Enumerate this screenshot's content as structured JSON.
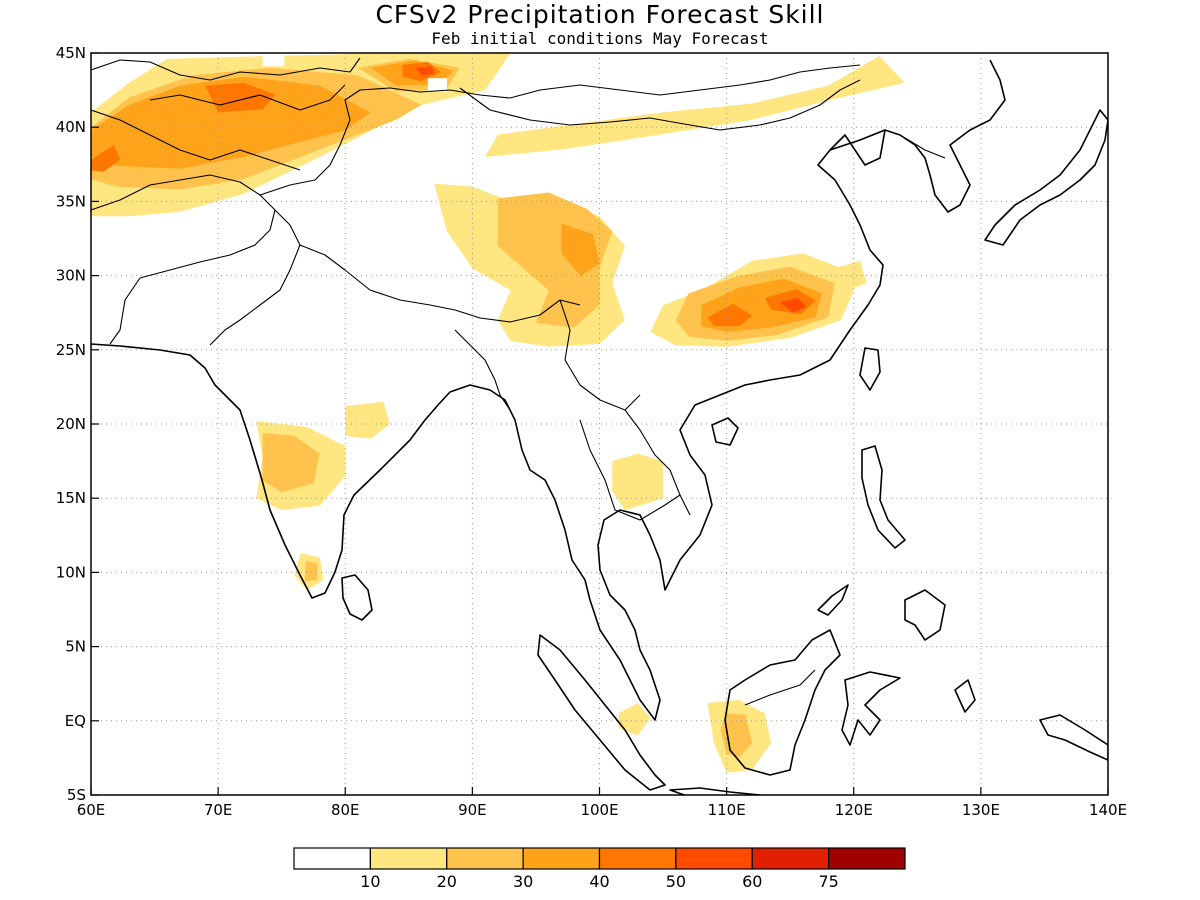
{
  "title": "CFSv2 Precipitation Forecast Skill",
  "subtitle": "Feb initial conditions  May Forecast",
  "map": {
    "lon_range": [
      60,
      140
    ],
    "lat_range": [
      -5,
      45
    ],
    "lon_ticks": [
      {
        "value": 60,
        "label": "60E"
      },
      {
        "value": 70,
        "label": "70E"
      },
      {
        "value": 80,
        "label": "80E"
      },
      {
        "value": 90,
        "label": "90E"
      },
      {
        "value": 100,
        "label": "100E"
      },
      {
        "value": 110,
        "label": "110E"
      },
      {
        "value": 120,
        "label": "120E"
      },
      {
        "value": 130,
        "label": "130E"
      },
      {
        "value": 140,
        "label": "140E"
      }
    ],
    "lat_ticks": [
      {
        "value": 45,
        "label": "45N"
      },
      {
        "value": 40,
        "label": "40N"
      },
      {
        "value": 35,
        "label": "35N"
      },
      {
        "value": 30,
        "label": "30N"
      },
      {
        "value": 25,
        "label": "25N"
      },
      {
        "value": 20,
        "label": "20N"
      },
      {
        "value": 15,
        "label": "15N"
      },
      {
        "value": 10,
        "label": "10N"
      },
      {
        "value": 5,
        "label": "5N"
      },
      {
        "value": 0,
        "label": "EQ"
      },
      {
        "value": -5,
        "label": "5S"
      }
    ],
    "grid": "dotted"
  },
  "colorbar": {
    "labels": [
      "10",
      "20",
      "30",
      "40",
      "50",
      "60",
      "75"
    ],
    "colors": [
      "#ffffff",
      "#ffe680",
      "#ffc34d",
      "#ffa31a",
      "#ff7700",
      "#ff4a00",
      "#e02000",
      "#a00000"
    ]
  },
  "skill_regions": [
    {
      "level": 1,
      "points": [
        [
          66,
          44.6
        ],
        [
          74,
          44.8
        ],
        [
          84,
          45
        ],
        [
          93,
          45
        ],
        [
          91,
          42.5
        ],
        [
          86,
          41.5
        ],
        [
          78,
          38
        ],
        [
          72,
          35.5
        ],
        [
          67,
          34.3
        ],
        [
          63,
          34
        ],
        [
          60,
          34
        ],
        [
          60,
          41
        ],
        [
          63,
          43
        ]
      ]
    },
    {
      "level": 1,
      "points": [
        [
          91,
          38
        ],
        [
          97,
          38.5
        ],
        [
          104,
          39.4
        ],
        [
          112,
          40.5
        ],
        [
          118,
          41.8
        ],
        [
          124,
          43
        ],
        [
          122,
          44.8
        ],
        [
          118,
          42.8
        ],
        [
          112,
          41.6
        ],
        [
          105,
          41
        ],
        [
          98,
          40.2
        ],
        [
          92,
          39.5
        ]
      ]
    },
    {
      "level": 1,
      "points": [
        [
          87,
          36.2
        ],
        [
          90,
          36
        ],
        [
          93,
          35
        ],
        [
          97,
          35
        ],
        [
          100,
          34
        ],
        [
          102,
          32
        ],
        [
          101,
          29.5
        ],
        [
          102,
          27
        ],
        [
          100,
          25.4
        ],
        [
          96,
          25.2
        ],
        [
          93,
          25.6
        ],
        [
          92,
          27
        ],
        [
          93,
          29
        ],
        [
          90,
          30.5
        ],
        [
          88,
          33
        ]
      ]
    },
    {
      "level": 1,
      "points": [
        [
          108,
          29
        ],
        [
          112,
          31
        ],
        [
          116,
          31.5
        ],
        [
          119,
          30.5
        ],
        [
          120,
          29
        ],
        [
          119,
          27
        ],
        [
          115,
          25.8
        ],
        [
          110,
          25.2
        ],
        [
          106,
          25.3
        ],
        [
          104,
          26.2
        ],
        [
          105,
          28
        ]
      ]
    },
    {
      "level": 1,
      "points": [
        [
          73,
          20.2
        ],
        [
          77,
          19.8
        ],
        [
          80,
          18.5
        ],
        [
          80,
          16.5
        ],
        [
          78,
          14.5
        ],
        [
          75,
          14.2
        ],
        [
          73,
          15
        ],
        [
          73.5,
          17.8
        ]
      ]
    },
    {
      "level": 1,
      "points": [
        [
          80,
          21.2
        ],
        [
          83,
          21.5
        ],
        [
          83.5,
          20
        ],
        [
          82,
          19
        ],
        [
          80,
          19.2
        ]
      ]
    },
    {
      "level": 1,
      "points": [
        [
          101,
          17.5
        ],
        [
          103,
          18
        ],
        [
          105,
          17.5
        ],
        [
          105,
          15
        ],
        [
          102,
          14.2
        ],
        [
          101,
          15.5
        ]
      ]
    },
    {
      "level": 1,
      "points": [
        [
          108.5,
          1.2
        ],
        [
          111,
          1.4
        ],
        [
          113,
          0.5
        ],
        [
          113.5,
          -1.5
        ],
        [
          112,
          -3.3
        ],
        [
          110,
          -3.5
        ],
        [
          109,
          -1.5
        ]
      ]
    },
    {
      "level": 1,
      "points": [
        [
          101.5,
          0.5
        ],
        [
          103,
          1.2
        ],
        [
          104,
          0.2
        ],
        [
          103,
          -1
        ],
        [
          101.5,
          -0.5
        ]
      ]
    },
    {
      "level": 1,
      "points": [
        [
          76.5,
          11.3
        ],
        [
          78,
          11
        ],
        [
          78.3,
          9.5
        ],
        [
          77,
          8.8
        ],
        [
          76,
          9.8
        ]
      ]
    },
    {
      "level": 1,
      "points": [
        [
          118.5,
          30.5
        ],
        [
          120.5,
          31
        ],
        [
          121,
          29.5
        ],
        [
          119.5,
          29
        ]
      ]
    },
    {
      "level": 2,
      "points": [
        [
          68,
          43.5
        ],
        [
          74,
          44
        ],
        [
          81,
          43.5
        ],
        [
          86,
          41.5
        ],
        [
          84,
          40.5
        ],
        [
          78,
          38.5
        ],
        [
          72,
          36.5
        ],
        [
          67,
          35.8
        ],
        [
          62,
          36
        ],
        [
          60,
          36.5
        ],
        [
          60,
          40
        ],
        [
          63,
          42
        ]
      ]
    },
    {
      "level": 2,
      "points": [
        [
          81,
          44
        ],
        [
          85,
          44.6
        ],
        [
          89,
          44
        ],
        [
          88,
          42.6
        ],
        [
          84,
          42.4
        ]
      ]
    },
    {
      "level": 2,
      "points": [
        [
          92,
          35.2
        ],
        [
          96,
          35.6
        ],
        [
          99,
          34.5
        ],
        [
          101,
          33
        ],
        [
          100,
          30.5
        ],
        [
          100,
          28
        ],
        [
          98,
          26.5
        ],
        [
          95,
          26.8
        ],
        [
          96,
          29
        ],
        [
          94,
          30.5
        ],
        [
          92,
          32
        ]
      ]
    },
    {
      "level": 2,
      "points": [
        [
          107,
          28.8
        ],
        [
          111,
          30
        ],
        [
          115,
          30.6
        ],
        [
          118.5,
          29.5
        ],
        [
          118,
          27.2
        ],
        [
          114,
          26
        ],
        [
          110,
          25.6
        ],
        [
          107,
          25.9
        ],
        [
          106,
          27
        ]
      ]
    },
    {
      "level": 2,
      "points": [
        [
          73.5,
          19.4
        ],
        [
          76,
          19.2
        ],
        [
          78,
          18
        ],
        [
          77.5,
          16
        ],
        [
          75,
          15.4
        ],
        [
          73.5,
          16.2
        ]
      ]
    },
    {
      "level": 2,
      "points": [
        [
          110,
          0.5
        ],
        [
          111.5,
          0.4
        ],
        [
          112,
          -1.5
        ],
        [
          111,
          -2.5
        ],
        [
          110,
          -2.2
        ],
        [
          109.5,
          -0.6
        ]
      ]
    },
    {
      "level": 2,
      "points": [
        [
          76.9,
          10.8
        ],
        [
          77.8,
          10.6
        ],
        [
          77.8,
          9.5
        ],
        [
          76.8,
          9.4
        ]
      ]
    },
    {
      "level": 3,
      "points": [
        [
          67,
          42.8
        ],
        [
          72,
          43.4
        ],
        [
          78,
          42.8
        ],
        [
          82,
          41
        ],
        [
          80,
          39.8
        ],
        [
          76,
          38.9
        ],
        [
          72,
          38
        ],
        [
          67,
          37.2
        ],
        [
          62,
          37.4
        ],
        [
          60,
          38
        ],
        [
          60,
          39.8
        ],
        [
          63,
          41.5
        ]
      ]
    },
    {
      "level": 3,
      "points": [
        [
          82,
          44
        ],
        [
          85.5,
          44.5
        ],
        [
          88.5,
          43.8
        ],
        [
          87.5,
          42.9
        ],
        [
          84,
          42.8
        ]
      ]
    },
    {
      "level": 3,
      "points": [
        [
          97,
          33.5
        ],
        [
          99.5,
          32.8
        ],
        [
          100,
          30.8
        ],
        [
          98.5,
          30
        ],
        [
          97,
          31.5
        ]
      ]
    },
    {
      "level": 3,
      "points": [
        [
          108,
          28
        ],
        [
          111,
          29.2
        ],
        [
          114.5,
          29.8
        ],
        [
          117.5,
          28.8
        ],
        [
          117,
          27.2
        ],
        [
          113.5,
          26.5
        ],
        [
          110,
          26.2
        ],
        [
          108,
          26.6
        ]
      ]
    },
    {
      "level": 4,
      "points": [
        [
          69,
          42.8
        ],
        [
          72,
          43
        ],
        [
          74.5,
          42.2
        ],
        [
          73.5,
          41.2
        ],
        [
          70,
          41
        ]
      ]
    },
    {
      "level": 4,
      "points": [
        [
          60,
          37.8
        ],
        [
          61.8,
          38.8
        ],
        [
          62.3,
          37.8
        ],
        [
          61,
          37
        ],
        [
          60,
          37.1
        ]
      ]
    },
    {
      "level": 4,
      "points": [
        [
          84.5,
          44.2
        ],
        [
          86.5,
          44.4
        ],
        [
          87.5,
          43.7
        ],
        [
          86,
          43.1
        ],
        [
          84.5,
          43.4
        ]
      ]
    },
    {
      "level": 4,
      "points": [
        [
          108.5,
          27.2
        ],
        [
          110.5,
          28.1
        ],
        [
          112,
          27.3
        ],
        [
          111,
          26.6
        ],
        [
          109,
          26.6
        ]
      ]
    },
    {
      "level": 4,
      "points": [
        [
          113,
          28.5
        ],
        [
          115.5,
          29.1
        ],
        [
          117,
          28.3
        ],
        [
          115.8,
          27.4
        ],
        [
          113.5,
          27.7
        ]
      ]
    },
    {
      "level": 5,
      "points": [
        [
          114.2,
          28.2
        ],
        [
          115.6,
          28.5
        ],
        [
          116.3,
          27.9
        ],
        [
          115.2,
          27.5
        ]
      ]
    },
    {
      "level": 5,
      "points": [
        [
          85.5,
          44
        ],
        [
          86.8,
          44.1
        ],
        [
          87,
          43.6
        ],
        [
          86,
          43.5
        ]
      ]
    }
  ],
  "masked_cells": [
    {
      "lon": [
        73.5,
        75.2
      ],
      "lat": [
        44.1,
        45
      ]
    },
    {
      "lon": [
        86.5,
        88
      ],
      "lat": [
        42.4,
        43.3
      ]
    },
    {
      "lon": [
        117.5,
        119.2
      ],
      "lat": [
        39.8,
        41.2
      ]
    }
  ]
}
